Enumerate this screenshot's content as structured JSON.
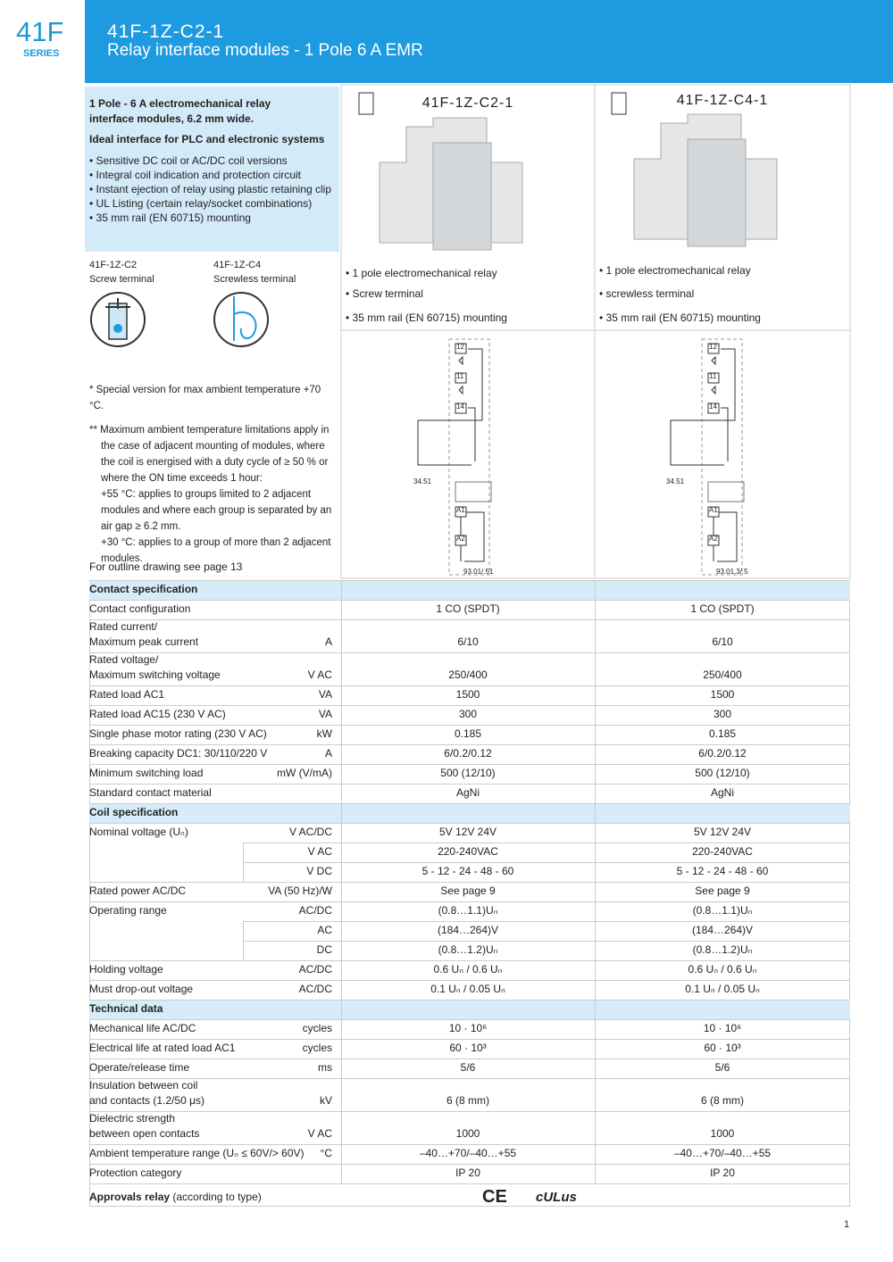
{
  "header": {
    "series": "41F",
    "series_label": "SERIES",
    "code": "41F-1Z-C2-1",
    "title": "Relay interface modules - 1 Pole 6 A EMR"
  },
  "intro": {
    "title": "1 Pole - 6 A electromechanical relay\ninterface modules, 6.2 mm wide.",
    "subtitle": "Ideal interface for PLC and electronic systems",
    "bullets": [
      "Sensitive DC coil or AC/DC coil versions",
      "Integral coil indication and protection circuit",
      "Instant ejection of relay using plastic retaining clip",
      "UL Listing (certain relay/socket combinations)",
      "35 mm rail (EN 60715) mounting"
    ]
  },
  "terminals": [
    {
      "code": "41F-1Z-C2",
      "label": "Screw terminal"
    },
    {
      "code": "41F-1Z-C4",
      "label": "Screwless terminal"
    }
  ],
  "products": [
    {
      "code": "41F-1Z-C2-1",
      "bullets": [
        "1 pole electromechanical relay",
        "Screw terminal",
        "35 mm rail (EN 60715) mounting"
      ],
      "diagram": [
        "12",
        "11",
        "14",
        "34.51",
        "A1",
        "A2",
        "93.01/.51"
      ]
    },
    {
      "code": "41F-1Z-C4-1",
      "bullets": [
        "1 pole electromechanical relay",
        "screwless terminal",
        "35 mm rail (EN 60715) mounting"
      ],
      "diagram": [
        "12",
        "11",
        "14",
        "34.51",
        "A1",
        "A2",
        "93.01.3/.5"
      ]
    }
  ],
  "notes": [
    "*  Special version for max ambient temperature +70 °C.",
    "** Maximum ambient temperature limitations apply in the case of adjacent mounting of modules, where the coil is energised with a duty cycle of ≥ 50 % or where the ON time exceeds 1 hour:",
    "+55 °C: applies to groups limited to 2 adjacent modules and where each group is separated by an air gap ≥ 6.2 mm.",
    "+30 °C: applies to a group of more than 2 adjacent modules."
  ],
  "outline_note": "For outline drawing see page 13",
  "sections": [
    {
      "title": "Contact specification",
      "rows": [
        [
          "Contact configuration",
          null,
          "1 CO (SPDT)",
          "1 CO (SPDT)"
        ],
        [
          "Rated current/\nMaximum peak current",
          "A",
          "6/10",
          "6/10"
        ],
        [
          "Rated voltage/\nMaximum switching voltage",
          "V AC",
          "250/400",
          "250/400"
        ],
        [
          "Rated load AC1",
          "VA",
          "1500",
          "1500"
        ],
        [
          "Rated load AC15 (230 V AC)",
          "VA",
          "300",
          "300"
        ],
        [
          "Single phase motor rating (230 V AC)",
          "kW",
          "0.185",
          "0.185"
        ],
        [
          "Breaking capacity DC1: 30/110/220 V",
          "A",
          "6/0.2/0.12",
          "6/0.2/0.12"
        ],
        [
          "Minimum switching load",
          "mW (V/mA)",
          "500 (12/10)",
          "500 (12/10)"
        ],
        [
          "Standard contact material",
          null,
          "AgNi",
          "AgNi"
        ]
      ]
    },
    {
      "title": "Coil specification",
      "rows": [
        [
          "Nominal voltage (Uₙ)",
          "V AC/DC",
          "5V    12V    24V",
          "5V    12V    24V"
        ],
        [
          null,
          "V AC",
          "220-240VAC",
          "220-240VAC"
        ],
        [
          null,
          "V DC",
          "5 - 12 - 24 - 48 - 60",
          "5 - 12 - 24 - 48 - 60"
        ],
        [
          "Rated power AC/DC",
          "VA (50 Hz)/W",
          "See page 9",
          "See page 9"
        ],
        [
          "Operating range",
          "AC/DC",
          "(0.8…1.1)Uₙ",
          "(0.8…1.1)Uₙ"
        ],
        [
          null,
          "AC",
          "(184…264)V",
          "(184…264)V"
        ],
        [
          null,
          "DC",
          "(0.8…1.2)Uₙ",
          "(0.8…1.2)Uₙ"
        ],
        [
          "Holding voltage",
          "AC/DC",
          "0.6 Uₙ / 0.6 Uₙ",
          "0.6 Uₙ / 0.6 Uₙ"
        ],
        [
          "Must drop-out voltage",
          "AC/DC",
          "0.1 Uₙ / 0.05 Uₙ",
          "0.1 Uₙ / 0.05 Uₙ"
        ]
      ]
    },
    {
      "title": "Technical data",
      "rows": [
        [
          "Mechanical life AC/DC",
          "cycles",
          "10 · 10⁶",
          "10 · 10⁶"
        ],
        [
          "Electrical life at rated load AC1",
          "cycles",
          "60 · 10³",
          "60 · 10³"
        ],
        [
          "Operate/release time",
          "ms",
          "5/6",
          "5/6"
        ],
        [
          "Insulation between coil\nand contacts (1.2/50 μs)",
          "kV",
          "6 (8 mm)",
          "6 (8 mm)"
        ],
        [
          "Dielectric strength\nbetween open contacts",
          "V AC",
          "1000",
          "1000"
        ],
        [
          "Ambient temperature range (Uₙ ≤ 60V/> 60V)",
          "°C",
          "–40…+70/–40…+55",
          "–40…+70/–40…+55"
        ],
        [
          "Protection category",
          null,
          "IP 20",
          "IP 20"
        ]
      ]
    }
  ],
  "approvals": {
    "label": "Approvals relay",
    "note": "(according to type)",
    "marks": [
      "CE",
      "cULus"
    ]
  },
  "page_number": "1"
}
